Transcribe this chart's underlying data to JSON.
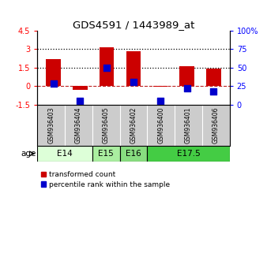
{
  "title": "GDS4591 / 1443989_at",
  "samples": [
    "GSM936403",
    "GSM936404",
    "GSM936405",
    "GSM936402",
    "GSM936400",
    "GSM936401",
    "GSM936406"
  ],
  "red_values": [
    2.2,
    -0.3,
    3.15,
    2.8,
    -0.05,
    1.62,
    1.45
  ],
  "blue_percentiles": [
    28,
    5,
    50,
    30,
    5,
    22,
    18
  ],
  "ylim_left": [
    -1.5,
    4.5
  ],
  "ylim_right": [
    0,
    100
  ],
  "yticks_left": [
    -1.5,
    0,
    1.5,
    3,
    4.5
  ],
  "yticks_right": [
    0,
    25,
    50,
    75,
    100
  ],
  "hlines_dotted": [
    1.5,
    3.0
  ],
  "hline_dashed_color": "#bb2222",
  "age_groups": [
    {
      "label": "E14",
      "start": 0,
      "end": 2,
      "color": "#ddffd8"
    },
    {
      "label": "E15",
      "start": 2,
      "end": 3,
      "color": "#aaeea0"
    },
    {
      "label": "E16",
      "start": 3,
      "end": 4,
      "color": "#88dd80"
    },
    {
      "label": "E17.5",
      "start": 4,
      "end": 7,
      "color": "#44cc44"
    }
  ],
  "bar_color": "#cc0000",
  "blue_color": "#0000cc",
  "bar_width": 0.55,
  "blue_marker_size": 40,
  "legend_labels": [
    "transformed count",
    "percentile rank within the sample"
  ],
  "age_label": "age",
  "sample_bg": "#cccccc",
  "background_color": "#ffffff"
}
